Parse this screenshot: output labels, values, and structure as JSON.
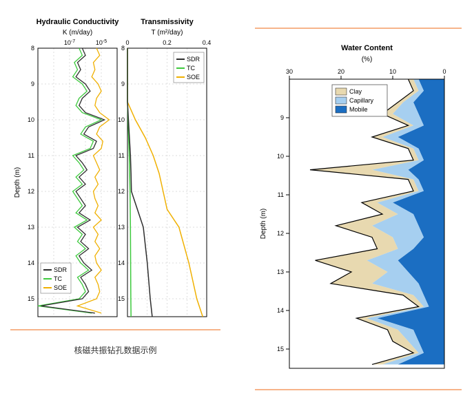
{
  "panel_left": {
    "hydraulic": {
      "title": "Hydraulic Conductivity",
      "subtitle": "K (m/day)",
      "xmin_exp": -9,
      "xmax_exp": -4,
      "xticks_exp": [
        -7,
        -5
      ],
      "ylim": [
        8,
        15.5
      ],
      "yticks": [
        8,
        9,
        10,
        11,
        12,
        13,
        14,
        15
      ],
      "ylabel": "Depth (m)",
      "series_colors": {
        "SDR": "#2d2d2d",
        "TC": "#3dc93d",
        "SOE": "#f0b000"
      },
      "depths": [
        8.0,
        8.2,
        8.4,
        8.6,
        8.8,
        9.0,
        9.2,
        9.4,
        9.6,
        9.8,
        10.0,
        10.2,
        10.4,
        10.6,
        10.8,
        11.0,
        11.2,
        11.4,
        11.6,
        11.8,
        12.0,
        12.2,
        12.4,
        12.6,
        12.8,
        13.0,
        13.2,
        13.4,
        13.6,
        13.8,
        14.0,
        14.2,
        14.4,
        14.6,
        14.8,
        15.0,
        15.2,
        15.4
      ],
      "SDR_exps": [
        -6.2,
        -6.0,
        -6.5,
        -6.3,
        -6.6,
        -6.0,
        -5.7,
        -6.2,
        -6.4,
        -6.0,
        -4.8,
        -5.8,
        -6.1,
        -5.3,
        -5.5,
        -6.6,
        -6.2,
        -5.9,
        -6.4,
        -6.0,
        -6.6,
        -6.3,
        -6.0,
        -6.4,
        -5.7,
        -6.5,
        -6.0,
        -6.3,
        -5.8,
        -6.4,
        -6.1,
        -5.6,
        -6.3,
        -6.0,
        -5.8,
        -6.2,
        -8.8,
        -5.4
      ],
      "TC_exps": [
        -6.4,
        -6.2,
        -6.7,
        -6.5,
        -6.8,
        -6.2,
        -5.9,
        -6.4,
        -6.6,
        -6.2,
        -5.0,
        -6.0,
        -6.3,
        -5.5,
        -5.7,
        -6.8,
        -6.4,
        -6.1,
        -6.6,
        -6.2,
        -6.8,
        -6.5,
        -6.2,
        -6.6,
        -5.9,
        -6.7,
        -6.2,
        -6.5,
        -6.0,
        -6.6,
        -6.3,
        -5.8,
        -6.5,
        -6.2,
        -6.0,
        -6.4,
        -9.0,
        -5.6
      ],
      "SOE_exps": [
        -5.3,
        -5.1,
        -5.5,
        -5.4,
        -5.6,
        -5.2,
        -5.0,
        -5.3,
        -5.4,
        -5.1,
        -4.5,
        -5.1,
        -5.3,
        -4.9,
        -5.0,
        -5.5,
        -5.3,
        -5.1,
        -5.4,
        -5.2,
        -5.5,
        -5.4,
        -5.2,
        -5.4,
        -5.0,
        -5.5,
        -5.2,
        -5.4,
        -5.1,
        -5.4,
        -5.3,
        -5.0,
        -5.4,
        -5.2,
        -5.1,
        -5.3,
        -6.5,
        -5.0
      ]
    },
    "transmissivity": {
      "title": "Transmissivity",
      "subtitle": "T (m²/day)",
      "xlim": [
        0,
        0.4
      ],
      "xticks": [
        0,
        0.2,
        0.4
      ],
      "ylim": [
        8,
        15.5
      ],
      "yticks": [
        8,
        9,
        10,
        11,
        12,
        13,
        14,
        15
      ],
      "series_colors": {
        "SDR": "#2d2d2d",
        "TC": "#3dc93d",
        "SOE": "#f0b000"
      },
      "depths": [
        8.0,
        9.5,
        10.0,
        10.5,
        11.0,
        11.5,
        12.0,
        12.5,
        13.0,
        14.0,
        15.0,
        15.5
      ],
      "SDR": [
        0.0,
        0.0,
        0.005,
        0.01,
        0.015,
        0.018,
        0.02,
        0.05,
        0.08,
        0.1,
        0.115,
        0.125
      ],
      "TC": [
        0.0,
        0.0,
        0.003,
        0.006,
        0.009,
        0.011,
        0.013,
        0.014,
        0.015,
        0.016,
        0.017,
        0.018
      ],
      "SOE": [
        0.0,
        0.0,
        0.04,
        0.09,
        0.13,
        0.16,
        0.18,
        0.2,
        0.26,
        0.31,
        0.35,
        0.38
      ]
    },
    "legend": {
      "items": [
        "SDR",
        "TC",
        "SOE"
      ]
    },
    "grid_color": "#bdbdbd",
    "background": "#ffffff"
  },
  "panel_right": {
    "title": "Water Content",
    "subtitle": "(%)",
    "xlim": [
      30,
      0
    ],
    "xticks": [
      30,
      20,
      10,
      0
    ],
    "ylim": [
      8,
      15.5
    ],
    "yticks": [
      9,
      10,
      11,
      12,
      13,
      14,
      15
    ],
    "ylabel": "Depth (m)",
    "colors": {
      "Clay": "#e8d9b0",
      "Capillary": "#a6cff0",
      "Mobile": "#1b6ec2"
    },
    "legend": {
      "items": [
        "Clay",
        "Capillary",
        "Mobile"
      ]
    },
    "depths": [
      8.0,
      8.3,
      8.6,
      8.9,
      9.2,
      9.5,
      9.8,
      10.1,
      10.35,
      10.6,
      10.9,
      11.2,
      11.5,
      11.8,
      12.1,
      12.4,
      12.7,
      13.0,
      13.3,
      13.6,
      13.9,
      14.2,
      14.5,
      14.8,
      15.1,
      15.4
    ],
    "mobile": [
      5,
      4,
      6,
      5,
      4,
      9,
      5,
      4,
      7,
      5,
      4,
      10,
      6,
      5,
      4,
      6,
      9,
      7,
      5,
      4,
      3,
      13,
      6,
      5,
      4,
      9
    ],
    "cap_plus": [
      6,
      5,
      8,
      10,
      6,
      12,
      6,
      5,
      14,
      6,
      5,
      13,
      9,
      14,
      10,
      9,
      15,
      11,
      14,
      6,
      4,
      15,
      9,
      7,
      5,
      12
    ],
    "clay_plus": [
      7,
      6,
      9,
      12,
      7,
      14,
      7,
      6,
      26,
      7,
      6,
      16,
      12,
      21,
      14,
      13,
      25,
      18,
      22,
      8,
      5,
      17,
      11,
      10,
      6,
      14
    ],
    "background": "#ffffff"
  },
  "caption": "核磁共振钻孔数据示例",
  "rules": {
    "color": "#f7b48a"
  }
}
